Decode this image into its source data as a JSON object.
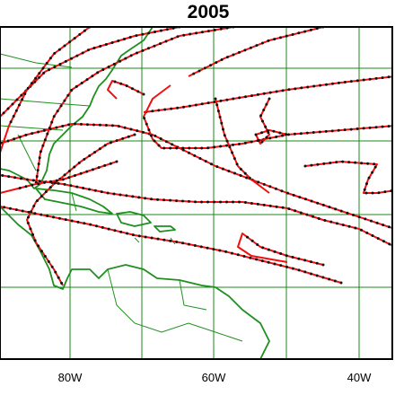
{
  "title": "2005",
  "x_axis": {
    "labels": [
      "80W",
      "60W",
      "40W"
    ]
  }
}
